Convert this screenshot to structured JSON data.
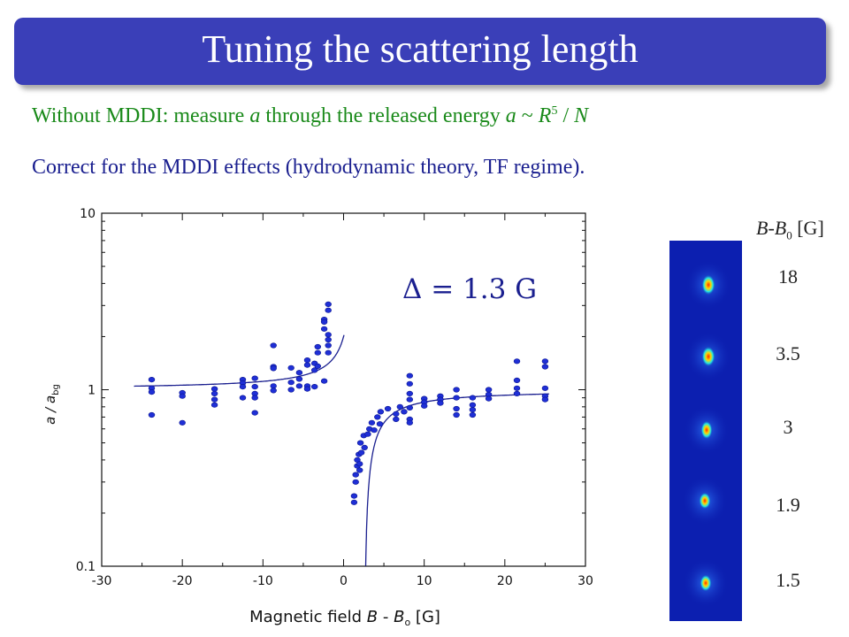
{
  "slide": {
    "title": "Tuning the scattering length",
    "line1": {
      "prefix": "Without MDDI: measure ",
      "var_a": "a",
      "mid": " through the released energy ",
      "formula_a": "a",
      "formula_sim": " ~ ",
      "formula_R": "R",
      "formula_exp": "5",
      "formula_div": " / ",
      "formula_N": "N"
    },
    "line2": "Correct for the MDDI effects (hydrodynamic theory, TF regime).",
    "images": {
      "header_B": "B",
      "header_dash": "-",
      "header_B0": "B",
      "header_sub": "0",
      "header_unit": " [G]",
      "labels": [
        "18",
        "3.5",
        "3",
        "1.9",
        "1.5"
      ]
    }
  },
  "colors": {
    "title_bar": "#3a3fb8",
    "line1_text": "#1a8a1a",
    "line2_text": "#1a1f8f",
    "data_points": "#1f2fd6",
    "fit_curve": "#1a1f8f"
  },
  "chart_data": {
    "type": "scatter",
    "title": "",
    "xlabel": "Magnetic field B - B0 [G]",
    "xlabel_parts": [
      "Magnetic field ",
      "B",
      " - ",
      "B",
      "o",
      " [G]"
    ],
    "ylabel": "a / a_bg",
    "ylabel_parts": [
      "a / a",
      "bg"
    ],
    "xlim": [
      -30,
      30
    ],
    "ylim": [
      0.1,
      10
    ],
    "y_scale": "log",
    "x_ticks": [
      "-30",
      "-20",
      "-10",
      "0",
      "10",
      "20",
      "30"
    ],
    "y_ticks": [
      "0.1",
      "1",
      "10"
    ],
    "grid": false,
    "annotation": "Δ = 1.3 G",
    "fit": {
      "name": "",
      "formula": "1 - 1.3/(B - B0 - 1.3)",
      "resonance_width": 1.3,
      "pole": 1.3
    },
    "points": [
      [
        -23.8,
        1.14
      ],
      [
        -23.8,
        1.02
      ],
      [
        -23.8,
        0.97
      ],
      [
        -23.8,
        0.72
      ],
      [
        -20,
        0.96
      ],
      [
        -20,
        0.92
      ],
      [
        -20,
        0.65
      ],
      [
        -16,
        1.01
      ],
      [
        -16,
        0.95
      ],
      [
        -16,
        0.88
      ],
      [
        -16,
        0.82
      ],
      [
        -12.5,
        1.14
      ],
      [
        -12.5,
        1.09
      ],
      [
        -12.5,
        1.04
      ],
      [
        -12.5,
        0.9
      ],
      [
        -11,
        1.16
      ],
      [
        -11,
        1.04
      ],
      [
        -11,
        0.95
      ],
      [
        -11,
        0.9
      ],
      [
        -11,
        0.74
      ],
      [
        -8.7,
        1.78
      ],
      [
        -8.7,
        1.35
      ],
      [
        -8.7,
        1.32
      ],
      [
        -8.7,
        1.05
      ],
      [
        -8.7,
        0.99
      ],
      [
        -6.5,
        1.33
      ],
      [
        -6.5,
        1.1
      ],
      [
        -6.5,
        1.0
      ],
      [
        -5.5,
        1.25
      ],
      [
        -5.5,
        1.15
      ],
      [
        -5.5,
        1.05
      ],
      [
        -4.5,
        1.47
      ],
      [
        -4.5,
        1.38
      ],
      [
        -4.5,
        1.05
      ],
      [
        -4.5,
        1.01
      ],
      [
        -3.6,
        1.41
      ],
      [
        -3.6,
        1.29
      ],
      [
        -3.6,
        1.04
      ],
      [
        -3.2,
        1.75
      ],
      [
        -3.2,
        1.62
      ],
      [
        -3.2,
        1.36
      ],
      [
        -2.4,
        2.5
      ],
      [
        -2.4,
        2.42
      ],
      [
        -2.4,
        2.21
      ],
      [
        -2.4,
        1.12
      ],
      [
        -1.9,
        3.05
      ],
      [
        -1.9,
        2.82
      ],
      [
        -1.9,
        2.05
      ],
      [
        -1.9,
        1.92
      ],
      [
        -1.9,
        1.78
      ],
      [
        -1.9,
        1.62
      ],
      [
        1.3,
        0.23
      ],
      [
        1.3,
        0.25
      ],
      [
        1.5,
        0.3
      ],
      [
        1.5,
        0.33
      ],
      [
        1.7,
        0.37
      ],
      [
        1.7,
        0.4
      ],
      [
        1.9,
        0.43
      ],
      [
        2.0,
        0.38
      ],
      [
        2.0,
        0.35
      ],
      [
        2.1,
        0.5
      ],
      [
        2.2,
        0.44
      ],
      [
        2.5,
        0.55
      ],
      [
        2.6,
        0.47
      ],
      [
        3.0,
        0.56
      ],
      [
        3.2,
        0.6
      ],
      [
        3.5,
        0.65
      ],
      [
        3.8,
        0.59
      ],
      [
        4.2,
        0.7
      ],
      [
        4.5,
        0.64
      ],
      [
        4.6,
        0.75
      ],
      [
        5.5,
        0.78
      ],
      [
        6.5,
        0.73
      ],
      [
        6.5,
        0.68
      ],
      [
        7.0,
        0.8
      ],
      [
        7.5,
        0.75
      ],
      [
        8.2,
        1.2
      ],
      [
        8.2,
        1.08
      ],
      [
        8.2,
        0.95
      ],
      [
        8.2,
        0.88
      ],
      [
        8.2,
        0.79
      ],
      [
        8.2,
        0.68
      ],
      [
        8.2,
        0.65
      ],
      [
        10,
        0.89
      ],
      [
        10,
        0.85
      ],
      [
        10,
        0.81
      ],
      [
        12,
        0.92
      ],
      [
        12,
        0.88
      ],
      [
        12,
        0.84
      ],
      [
        14,
        1.0
      ],
      [
        14,
        0.9
      ],
      [
        14,
        0.78
      ],
      [
        14,
        0.72
      ],
      [
        16,
        0.9
      ],
      [
        16,
        0.82
      ],
      [
        16,
        0.77
      ],
      [
        16,
        0.72
      ],
      [
        18,
        1.0
      ],
      [
        18,
        0.94
      ],
      [
        18,
        0.89
      ],
      [
        21.5,
        1.45
      ],
      [
        21.5,
        1.13
      ],
      [
        21.5,
        1.02
      ],
      [
        21.5,
        0.95
      ],
      [
        25,
        1.45
      ],
      [
        25,
        1.35
      ],
      [
        25,
        1.02
      ],
      [
        25,
        0.92
      ],
      [
        25,
        0.88
      ]
    ]
  }
}
